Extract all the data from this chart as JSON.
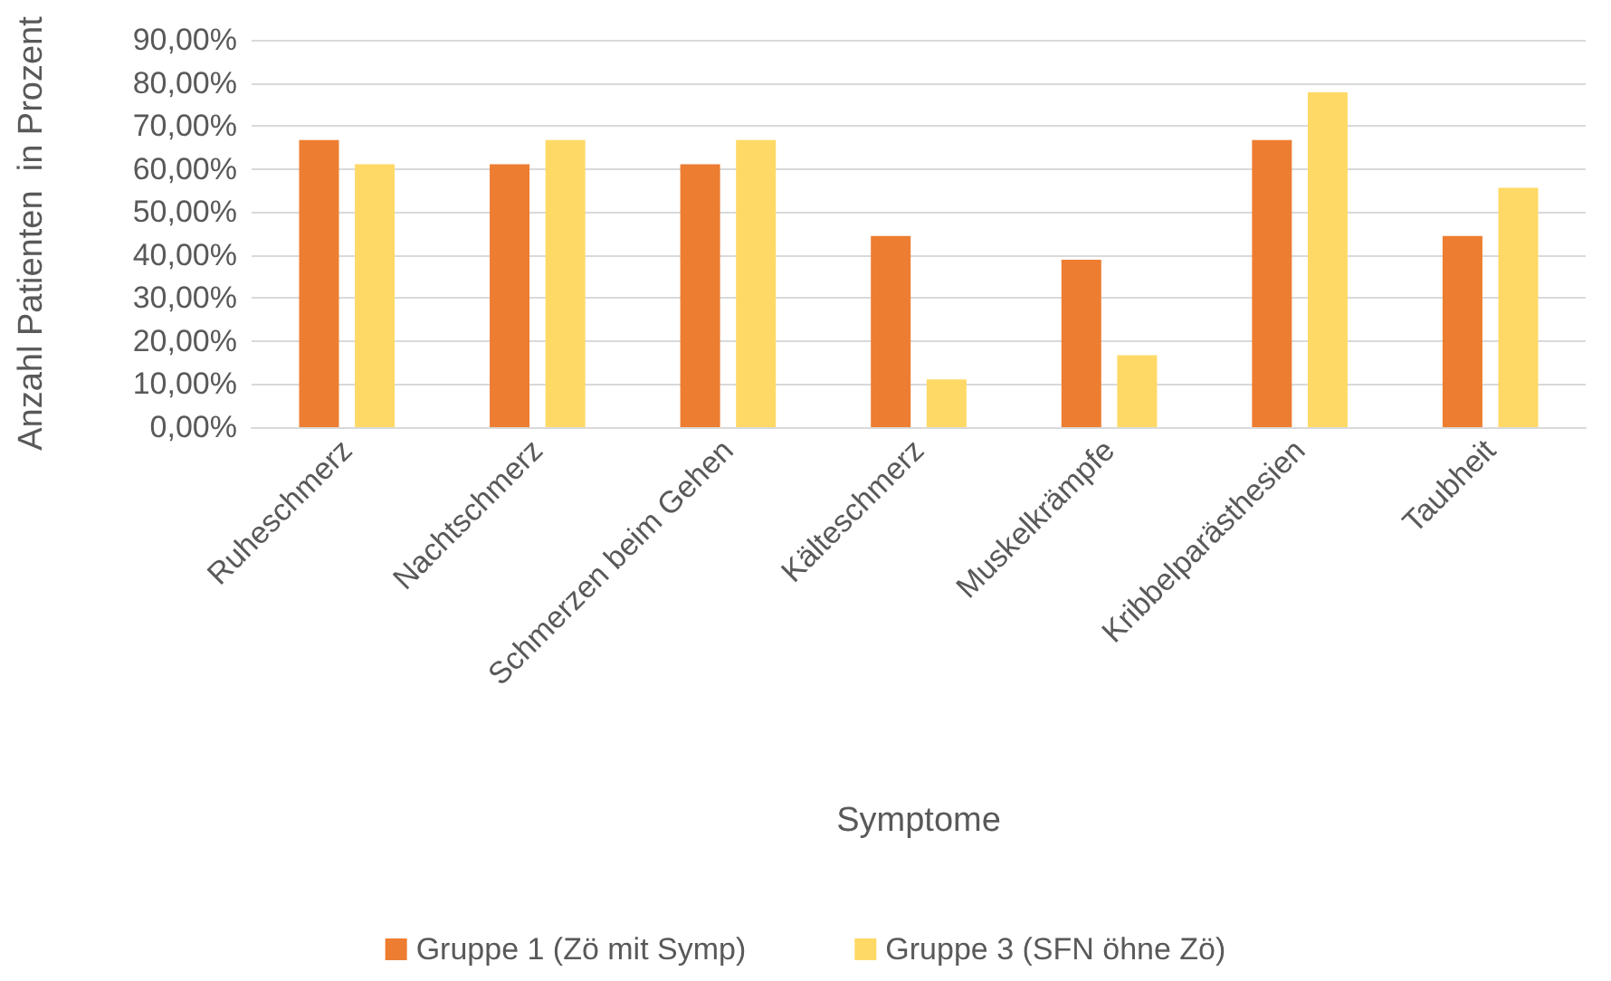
{
  "chart_data": {
    "type": "bar",
    "xlabel": "Symptome",
    "ylabel": "Anzahl Patienten  in Prozent",
    "categories": [
      "Ruheschmerz",
      "Nachtschmerz",
      "Schmerzen beim Gehen",
      "Kälteschmerz",
      "Muskelkrämpfe",
      "Kribbelparästhesien",
      "Taubheit"
    ],
    "series": [
      {
        "name": "Gruppe 1 (Zö mit Symp)",
        "color": "#ed7d31",
        "values": [
          66.7,
          61.1,
          61.1,
          44.4,
          38.9,
          66.7,
          44.4
        ]
      },
      {
        "name": "Gruppe 3 (SFN öhne Zö)",
        "color": "#ffd966",
        "values": [
          61.1,
          66.7,
          66.7,
          11.1,
          16.7,
          77.8,
          55.6
        ]
      }
    ],
    "ylim": [
      0,
      90
    ],
    "yticks": [
      {
        "value": 0,
        "label": "0,00%"
      },
      {
        "value": 10,
        "label": "10,00%"
      },
      {
        "value": 20,
        "label": "20,00%"
      },
      {
        "value": 30,
        "label": "30,00%"
      },
      {
        "value": 40,
        "label": "40,00%"
      },
      {
        "value": 50,
        "label": "50,00%"
      },
      {
        "value": 60,
        "label": "60,00%"
      },
      {
        "value": 70,
        "label": "70,00%"
      },
      {
        "value": 80,
        "label": "80,00%"
      },
      {
        "value": 90,
        "label": "90,00%"
      }
    ],
    "grid": "y",
    "legend": "bottom"
  }
}
